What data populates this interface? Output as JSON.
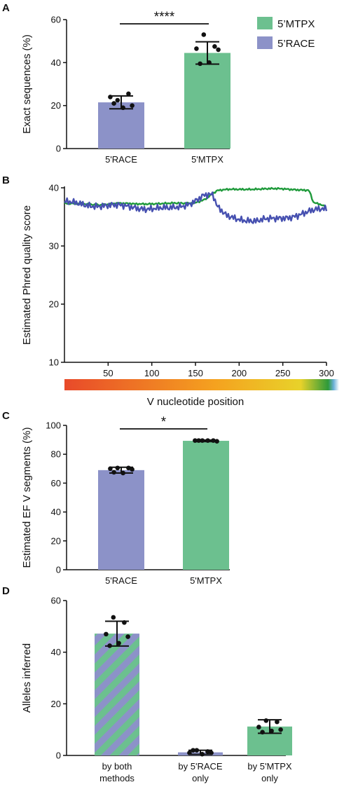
{
  "figure": {
    "legend": [
      {
        "label": "5’MTPX",
        "color": "#6cc08f"
      },
      {
        "label": "5’RACE",
        "color": "#8c92c8"
      }
    ],
    "colors": {
      "race": "#8c92c8",
      "mtpx": "#6cc08f",
      "race_line": "#4650b0",
      "mtpx_line": "#1f9a3b"
    }
  },
  "chart_data": [
    {
      "panel": "A",
      "type": "bar",
      "ylabel": "Exact sequences (%)",
      "ylim": [
        0,
        60
      ],
      "yticks": [
        0,
        20,
        40,
        60
      ],
      "categories": [
        "5'RACE",
        "5'MTPX"
      ],
      "values": [
        21.5,
        44.5
      ],
      "error_sd": [
        3.0,
        5.2
      ],
      "points": [
        [
          22.5,
          25.5,
          24,
          20,
          19,
          21
        ],
        [
          53,
          47.5,
          46.5,
          46,
          40,
          39.5
        ]
      ],
      "significance": "****"
    },
    {
      "panel": "B",
      "type": "line",
      "ylabel": "Estimated Phred quality score",
      "xlabel": "V nucleotide position",
      "xlim": [
        0,
        300
      ],
      "ylim": [
        10,
        40
      ],
      "xticks": [
        50,
        100,
        150,
        200,
        250,
        300
      ],
      "yticks": [
        10,
        20,
        30,
        40
      ],
      "series": [
        {
          "name": "5’MTPX",
          "x": [
            0,
            20,
            40,
            60,
            80,
            100,
            120,
            140,
            150,
            160,
            168,
            175,
            190,
            210,
            230,
            250,
            270,
            280,
            285,
            290,
            295,
            300
          ],
          "y": [
            37.3,
            37.2,
            37.1,
            37.3,
            37.2,
            37.3,
            37.3,
            37.3,
            37.5,
            38.0,
            38.8,
            39.5,
            39.7,
            39.8,
            39.8,
            39.8,
            39.7,
            39.6,
            37.5,
            37.2,
            37.0,
            36.5
          ]
        },
        {
          "name": "5’RACE",
          "x": [
            0,
            20,
            40,
            60,
            80,
            100,
            120,
            130,
            140,
            150,
            160,
            170,
            175,
            185,
            200,
            220,
            240,
            260,
            280,
            290,
            300
          ],
          "y": [
            37.4,
            37.2,
            37.0,
            36.8,
            36.7,
            36.5,
            36.3,
            36.6,
            37.2,
            38.0,
            38.8,
            38.6,
            36.5,
            35.2,
            34.8,
            34.2,
            34.6,
            35.2,
            35.8,
            36.1,
            36.3
          ]
        }
      ]
    },
    {
      "panel": "C",
      "type": "bar",
      "ylabel": "Estimated EF V segments (%)",
      "ylim": [
        0,
        100
      ],
      "yticks": [
        0,
        20,
        40,
        60,
        80,
        100
      ],
      "categories": [
        "5'RACE",
        "5'MTPX"
      ],
      "values": [
        69.0,
        89.3
      ],
      "error_sd": [
        2.0,
        0.5
      ],
      "points": [
        [
          70.5,
          70.5,
          70,
          69.5,
          67,
          67.5
        ],
        [
          89.5,
          89.5,
          89.5,
          89,
          89.5,
          89.5
        ]
      ],
      "significance": "*"
    },
    {
      "panel": "D",
      "type": "bar",
      "ylabel": "Alleles inferred",
      "ylim": [
        0,
        60
      ],
      "yticks": [
        0,
        20,
        40,
        60
      ],
      "categories": [
        [
          "by both",
          "methods"
        ],
        [
          "by 5'RACE",
          "only"
        ],
        [
          "by 5'MTPX",
          "only"
        ]
      ],
      "values": [
        47.2,
        1.2,
        11.2
      ],
      "error_sd": [
        4.8,
        0.8,
        2.6
      ],
      "points": [
        [
          53.5,
          51.5,
          47,
          46,
          43.5,
          42.5
        ],
        [
          2,
          1.5,
          1,
          1,
          0.5,
          2
        ],
        [
          13.5,
          13,
          11,
          10,
          9.5,
          9
        ]
      ]
    }
  ]
}
